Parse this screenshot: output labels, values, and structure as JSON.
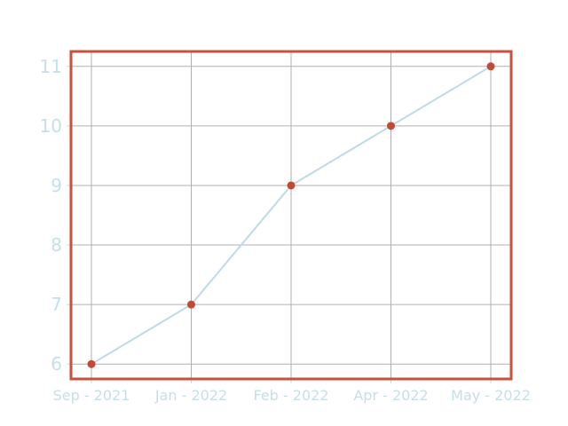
{
  "chart_data": {
    "type": "line",
    "categories": [
      "Sep - 2021",
      "Jan - 2022",
      "Feb - 2022",
      "Apr - 2022",
      "May - 2022"
    ],
    "series": [
      {
        "values": [
          6,
          7,
          9,
          10,
          11
        ]
      }
    ],
    "yticks": [
      "6",
      "7",
      "8",
      "9",
      "10",
      "11"
    ],
    "ylim": [
      5.75,
      11.25
    ],
    "grid": true,
    "legend": "none",
    "colors": {
      "line": "#bddbe6",
      "marker": "#c24a35",
      "frame": "#c9503a",
      "grid": "#b0b0b0",
      "tick_label": "#c5dfe8"
    }
  }
}
